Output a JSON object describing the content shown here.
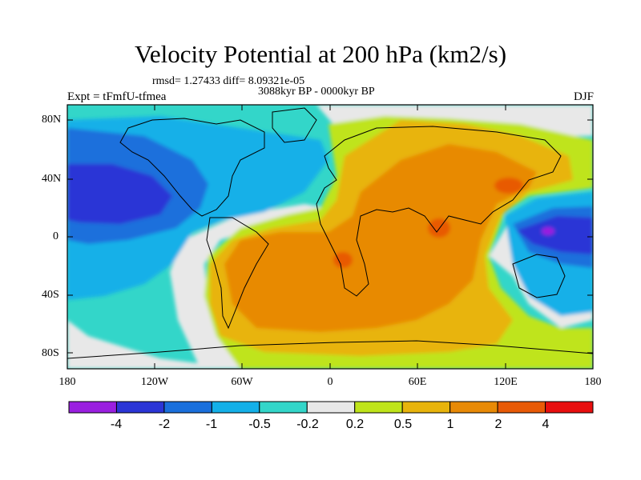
{
  "figure": {
    "title": "Velocity Potential at 200 hPa (km2/s)",
    "stats": "rmsd= 1.27433 diff= 8.09321e-05",
    "period": "3088kyr BP - 0000kyr BP",
    "experiment": "Expt = tFmfU-tfmea",
    "season": "DJF"
  },
  "axes": {
    "lat_labels": [
      "80N",
      "40N",
      "0",
      "40S",
      "80S"
    ],
    "lon_labels": [
      "180",
      "120W",
      "60W",
      "0",
      "60E",
      "120E",
      "180"
    ]
  },
  "colorbar": {
    "labels": [
      "-4",
      "-2",
      "-1",
      "-0.5",
      "-0.2",
      "0.2",
      "0.5",
      "1",
      "2",
      "4"
    ],
    "colors": [
      "#9a1fe0",
      "#2b35d6",
      "#1a6fdc",
      "#14b0e8",
      "#33d6c9",
      "#e8e8e8",
      "#bfe41a",
      "#e8b40c",
      "#e88a06",
      "#e85a06",
      "#e80e0e"
    ]
  }
}
